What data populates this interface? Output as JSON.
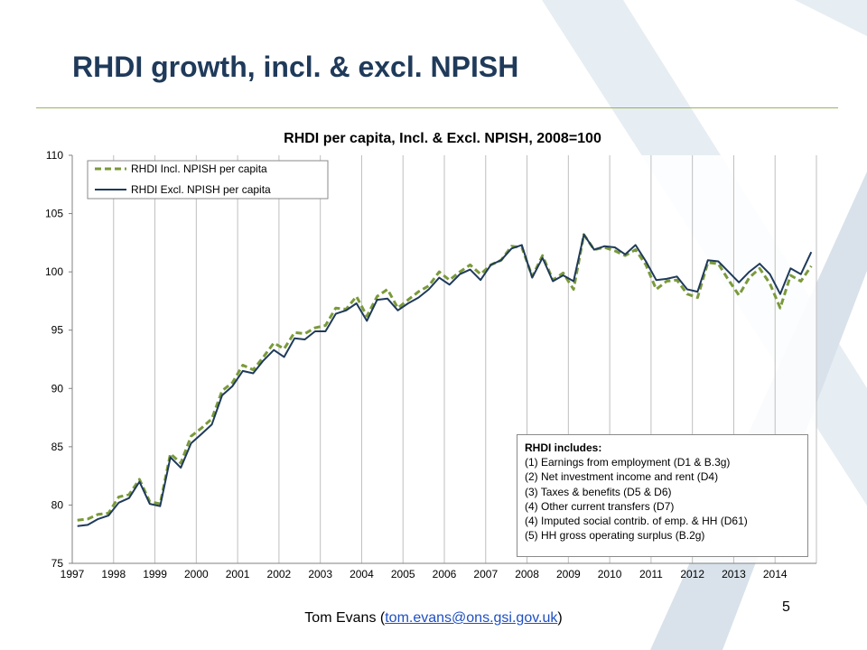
{
  "slide": {
    "title": "RHDI growth, incl. & excl. NPISH",
    "footer_prefix": "Tom Evans (",
    "footer_email": "tom.evans@ons.gsi.gov.uk",
    "footer_suffix": ")",
    "page_number": "5",
    "accent_color": "#9bb35a",
    "title_color": "#1f3a5a"
  },
  "notes": {
    "title": "RHDI includes:",
    "items": [
      "(1) Earnings from employment (D1 & B.3g)",
      "(2) Net investment income and rent (D4)",
      "(3) Taxes & benefits (D5 & D6)",
      "(4) Other current transfers (D7)",
      "(4) Imputed social contrib. of emp. & HH (D61)",
      "(5) HH gross operating surplus (B.2g)"
    ]
  },
  "chart_data": {
    "type": "line",
    "title": "RHDI per capita, Incl. & Excl. NPISH, 2008=100",
    "xlabel": "",
    "ylabel": "",
    "ylim": [
      75,
      110
    ],
    "yticks": [
      75,
      80,
      85,
      90,
      95,
      100,
      105,
      110
    ],
    "year_ticks": [
      "1997",
      "1998",
      "1999",
      "2000",
      "2001",
      "2002",
      "2003",
      "2004",
      "2005",
      "2006",
      "2007",
      "2008",
      "2009",
      "2010",
      "2011",
      "2012",
      "2013",
      "2014"
    ],
    "grid": "vertical",
    "legend_position": "top-left",
    "x_unit": "quarter",
    "x_start": "1997 Q1",
    "x_end": "2014 Q4",
    "series": [
      {
        "name": "RHDI Incl. NPISH per capita",
        "color": "#7a9a3a",
        "style": "dashed",
        "values": [
          78.7,
          78.8,
          79.2,
          79.3,
          80.7,
          80.9,
          82.2,
          80.3,
          80.1,
          84.4,
          83.6,
          85.9,
          86.6,
          87.4,
          89.8,
          90.5,
          92.0,
          91.6,
          92.7,
          93.9,
          93.4,
          94.8,
          94.7,
          95.2,
          95.4,
          96.9,
          96.8,
          97.9,
          96.2,
          97.9,
          98.5,
          96.9,
          97.6,
          98.3,
          98.8,
          100.0,
          99.3,
          100.0,
          100.6,
          99.8,
          100.6,
          101.0,
          102.2,
          102.1,
          99.6,
          101.4,
          99.3,
          99.9,
          98.5,
          103.2,
          101.9,
          102.1,
          101.8,
          101.4,
          101.9,
          100.6,
          98.5,
          99.2,
          99.3,
          98.1,
          97.8,
          100.8,
          100.7,
          99.3,
          98.0,
          99.5,
          100.3,
          99.0,
          96.9,
          99.7,
          99.2,
          100.5
        ]
      },
      {
        "name": "RHDI Excl. NPISH per capita",
        "color": "#1f3a5a",
        "style": "solid",
        "values": [
          78.2,
          78.3,
          78.8,
          79.1,
          80.2,
          80.6,
          82.0,
          80.1,
          79.9,
          84.1,
          83.2,
          85.3,
          86.1,
          86.9,
          89.4,
          90.2,
          91.5,
          91.3,
          92.4,
          93.3,
          92.7,
          94.3,
          94.2,
          94.9,
          94.9,
          96.4,
          96.7,
          97.3,
          95.8,
          97.6,
          97.7,
          96.7,
          97.3,
          97.8,
          98.5,
          99.5,
          98.9,
          99.8,
          100.2,
          99.3,
          100.6,
          101.0,
          102.0,
          102.3,
          99.5,
          101.2,
          99.2,
          99.7,
          99.2,
          103.2,
          101.9,
          102.2,
          102.1,
          101.5,
          102.3,
          100.9,
          99.3,
          99.4,
          99.6,
          98.5,
          98.3,
          101.0,
          100.9,
          100.0,
          99.1,
          100.0,
          100.7,
          99.8,
          98.1,
          100.3,
          99.8,
          101.7
        ]
      }
    ]
  }
}
